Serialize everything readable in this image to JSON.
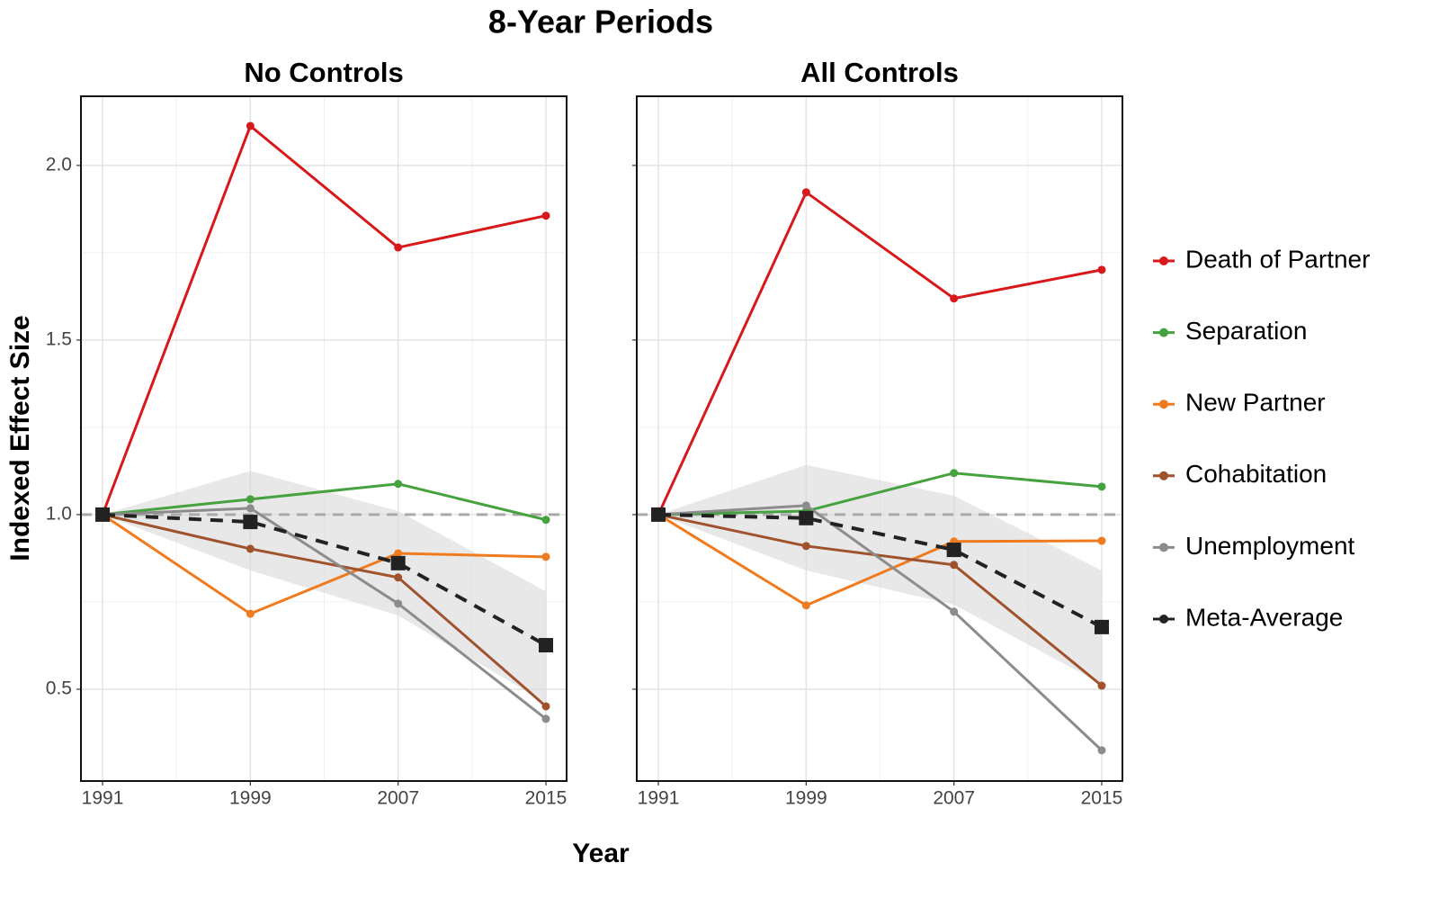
{
  "title": "8-Year Periods",
  "x_label": "Year",
  "y_label": "Indexed Effect Size",
  "chart_data": [
    {
      "type": "line",
      "title": "No Controls",
      "x": [
        1991,
        1999,
        2007,
        2015
      ],
      "xlim": [
        1989.83,
        2016.12
      ],
      "xticks": [
        1991,
        1999,
        2007,
        2015
      ],
      "x_minor_ticks": [
        1995,
        2003,
        2011
      ],
      "ylim": [
        0.237,
        2.198
      ],
      "yticks": [
        {
          "value": 0.5,
          "label": "0.5"
        },
        {
          "value": 1.0,
          "label": "1.0"
        },
        {
          "value": 1.5,
          "label": "1.5"
        },
        {
          "value": 2.0,
          "label": "2.0"
        }
      ],
      "y_minor_ticks": [
        0.75,
        1.25,
        1.75
      ],
      "show_yticklabels": true,
      "grid": true,
      "hline": 1,
      "series": [
        {
          "name": "Death of Partner",
          "color": "#d7191c",
          "values": [
            1,
            2.113,
            1.765,
            1.856
          ]
        },
        {
          "name": "Separation",
          "color": "#45a23e",
          "values": [
            1,
            1.044,
            1.088,
            0.985
          ]
        },
        {
          "name": "New Partner",
          "color": "#f07a1e",
          "values": [
            1,
            0.716,
            0.889,
            0.879
          ]
        },
        {
          "name": "Cohabitation",
          "color": "#a0522d",
          "values": [
            1,
            0.902,
            0.82,
            0.451
          ]
        },
        {
          "name": "Unemployment",
          "color": "#8c8c8c",
          "values": [
            1,
            1.018,
            0.745,
            0.415
          ]
        },
        {
          "name": "Meta-Average",
          "color": "#222222",
          "values": [
            1,
            0.979,
            0.861,
            0.626
          ],
          "linestyle": "dashed",
          "marker": "square",
          "lower": [
            1,
            0.84,
            0.711,
            0.461
          ],
          "upper": [
            1,
            1.125,
            1.01,
            0.78
          ]
        }
      ]
    },
    {
      "type": "line",
      "title": "All Controls",
      "x": [
        1991,
        1999,
        2007,
        2015
      ],
      "xlim": [
        1989.83,
        2016.12
      ],
      "xticks": [
        1991,
        1999,
        2007,
        2015
      ],
      "x_minor_ticks": [
        1995,
        2003,
        2011
      ],
      "ylim": [
        0.237,
        2.198
      ],
      "yticks": [
        0.5,
        1.0,
        1.5,
        2.0
      ],
      "y_minor_ticks": [
        0.75,
        1.25,
        1.75
      ],
      "show_yticklabels": false,
      "grid": true,
      "hline": 1,
      "series": [
        {
          "name": "Death of Partner",
          "color": "#d7191c",
          "values": [
            1,
            1.923,
            1.619,
            1.701
          ]
        },
        {
          "name": "Separation",
          "color": "#45a23e",
          "values": [
            1,
            1.01,
            1.119,
            1.08
          ]
        },
        {
          "name": "New Partner",
          "color": "#f07a1e",
          "values": [
            1,
            0.74,
            0.923,
            0.925
          ]
        },
        {
          "name": "Cohabitation",
          "color": "#a0522d",
          "values": [
            1,
            0.91,
            0.856,
            0.51
          ]
        },
        {
          "name": "Unemployment",
          "color": "#8c8c8c",
          "values": [
            1,
            1.026,
            0.722,
            0.325
          ]
        },
        {
          "name": "Meta-Average",
          "color": "#222222",
          "values": [
            1,
            0.99,
            0.899,
            0.678
          ],
          "linestyle": "dashed",
          "marker": "square",
          "lower": [
            1,
            0.84,
            0.742,
            0.515
          ],
          "upper": [
            1,
            1.142,
            1.054,
            0.84
          ]
        }
      ]
    }
  ]
}
